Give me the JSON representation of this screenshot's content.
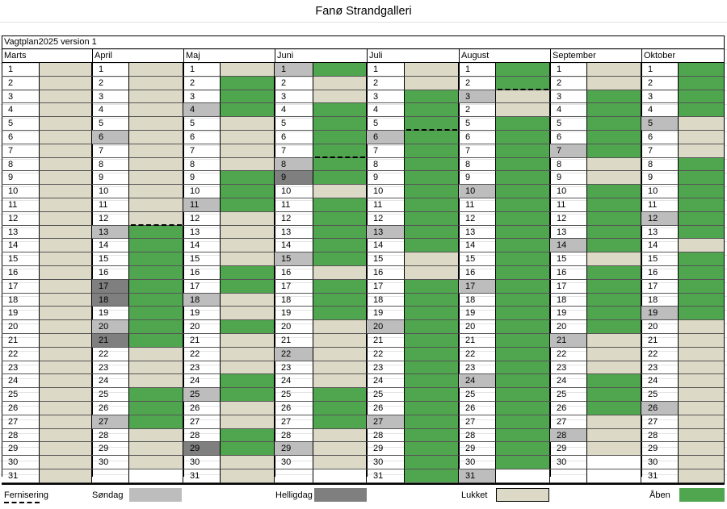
{
  "title": "Fanø Strandgalleri",
  "version_label": "Vagtplan2025 version 1",
  "colors": {
    "aben": "#4fa64f",
    "lukket": "#ddd9c7",
    "sondag": "#bdbdbd",
    "helligdag": "#7f7f7f",
    "white": "#ffffff"
  },
  "months": [
    {
      "name": "Marts",
      "days": 31,
      "grey": {},
      "status": "LLLLLLLLLLLLLLLLLLLLLLLLLLLLLLL",
      "dash": []
    },
    {
      "name": "April",
      "days": 30,
      "grey": {
        "6": "s",
        "13": "s",
        "17": "h",
        "18": "h",
        "20": "s",
        "21": "h",
        "27": "s"
      },
      "status": "LLLLLLLLLLLLAAAAAAAAALLLAAALLLW",
      "dash": [
        12
      ]
    },
    {
      "name": "Maj",
      "days": 31,
      "grey": {
        "4": "s",
        "11": "s",
        "18": "s",
        "25": "s",
        "29": "h"
      },
      "status": "LAAALLLLAAALLLLAALLALLLAALLAALL",
      "dash": []
    },
    {
      "name": "Juni",
      "days": 30,
      "grey": {
        "1": "s",
        "8": "s",
        "9": "h",
        "15": "s",
        "22": "s",
        "29": "s"
      },
      "status": "ALLAAAAAALAAAAALAAALLLLLAAALLLW",
      "dash": [
        7
      ]
    },
    {
      "name": "Juli",
      "days": 31,
      "grey": {
        "6": "s",
        "13": "s",
        "20": "s",
        "27": "s"
      },
      "status": "LLAAAAAAAAAAAALLAAAAAAAAAAAAAAA",
      "dash": [
        5
      ]
    },
    {
      "name": "August",
      "days": 31,
      "grey": {
        "3": "s",
        "10": "s",
        "17": "s",
        "24": "s",
        "31": "s"
      },
      "status": "AALLAAAAAAAAAAAAAAAAAAAAAAAAAAW",
      "dash": [
        2
      ]
    },
    {
      "name": "September",
      "days": 30,
      "grey": {
        "7": "s",
        "14": "s",
        "21": "s",
        "28": "s"
      },
      "status": "LLAAAAALLAAAAALAAAAALLLAAALLLW",
      "dash": []
    },
    {
      "name": "Oktober",
      "days": 31,
      "grey": {
        "5": "s",
        "12": "s",
        "19": "s",
        "26": "s"
      },
      "status": "AAAALLLAAAAAALAAAAALLLLLLLLLLLL",
      "dash": []
    }
  ],
  "day_labels": {
    "August": [
      "1",
      "2",
      "3",
      "2",
      "5",
      "6",
      "7",
      "8",
      "9",
      "10",
      "11",
      "12",
      "13",
      "14",
      "15",
      "16",
      "17",
      "18",
      "19",
      "20",
      "21",
      "22",
      "23",
      "24",
      "25",
      "26",
      "27",
      "28",
      "29",
      "30",
      "31"
    ]
  },
  "legend": {
    "fernisering": "Fernisering",
    "sondag": "Søndag",
    "helligdag": "Helligdag",
    "lukket": "Lukket",
    "aben": "Åben"
  }
}
